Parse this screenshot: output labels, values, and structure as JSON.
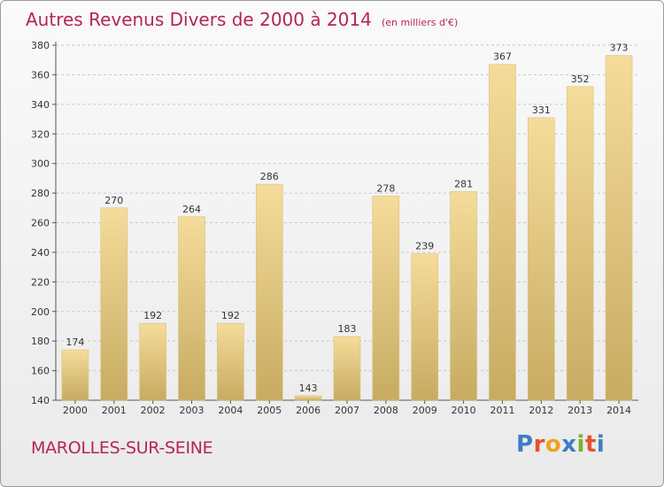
{
  "header": {
    "title": "Autres Revenus Divers de 2000 à 2014",
    "subtitle": "(en milliers d'€)"
  },
  "footer": {
    "city": "MAROLLES-SUR-SEINE",
    "logo": "Proxiti"
  },
  "colors": {
    "title": "#b5245c",
    "bar_light": "#f5dc9a",
    "bar_dark": "#c7ab62",
    "logo_letters": [
      "#3b7fc4",
      "#e2542b",
      "#f0a21e",
      "#3b7fc4",
      "#7ab32e",
      "#e2542b",
      "#3b7fc4"
    ]
  },
  "chart_data": {
    "type": "bar",
    "title": "Autres Revenus Divers de 2000 à 2014",
    "subtitle": "(en milliers d'€)",
    "categories": [
      "2000",
      "2001",
      "2002",
      "2003",
      "2004",
      "2005",
      "2006",
      "2007",
      "2008",
      "2009",
      "2010",
      "2011",
      "2012",
      "2013",
      "2014"
    ],
    "values": [
      174,
      270,
      192,
      264,
      192,
      286,
      143,
      183,
      278,
      239,
      281,
      367,
      331,
      352,
      373
    ],
    "ylim": [
      140,
      380
    ],
    "yticks": [
      140,
      160,
      180,
      200,
      220,
      240,
      260,
      280,
      300,
      320,
      340,
      360,
      380
    ],
    "grid": "horizontal dashed",
    "legend": "none"
  }
}
